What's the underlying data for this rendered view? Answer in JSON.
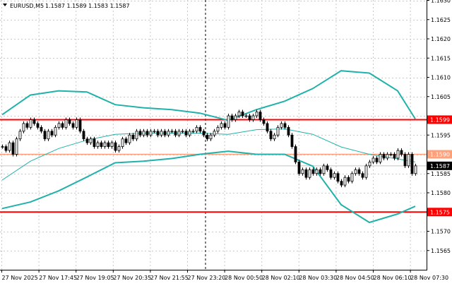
{
  "header": {
    "menu_icon": "triangle-down-icon",
    "symbol": "EURUSD,M5",
    "ohlc": "1.1587 1.1589 1.1583 1.1587"
  },
  "colors": {
    "band": "#20b2aa",
    "support_resistance": "#ff0000",
    "pivot": "#ffa07a",
    "bid_line": "#c0c0c0",
    "grid": "#c8c8c8",
    "background": "#ffffff"
  },
  "chart_data": {
    "type": "candlestick",
    "symbol": "EURUSD",
    "timeframe": "M5",
    "ylim": [
      1.1565,
      1.163
    ],
    "grid": true,
    "y_ticks": [
      "1.1630",
      "1.1625",
      "1.1620",
      "1.1615",
      "1.1610",
      "1.1605",
      "1.1595",
      "1.1585",
      "1.1580",
      "1.1570",
      "1.1565"
    ],
    "x_ticks": [
      "27 Nov 2025",
      "27 Nov 17:45",
      "27 Nov 19:05",
      "27 Nov 20:35",
      "27 Nov 21:55",
      "27 Nov 23:20",
      "28 Nov 00:50",
      "28 Nov 02:10",
      "28 Nov 03:30",
      "28 Nov 04:50",
      "28 Nov 06:10",
      "28 Nov 07:30"
    ],
    "closes": [
      1.1592,
      1.1591,
      1.1593,
      1.159,
      1.1594,
      1.1596,
      1.1598,
      1.1597,
      1.1599,
      1.1598,
      1.1597,
      1.1596,
      1.1594,
      1.1596,
      1.1595,
      1.1597,
      1.1598,
      1.1597,
      1.1599,
      1.1598,
      1.1597,
      1.1599,
      1.1596,
      1.1594,
      1.1593,
      1.1594,
      1.1592,
      1.1593,
      1.1592,
      1.1593,
      1.1592,
      1.1593,
      1.1591,
      1.1592,
      1.1594,
      1.1593,
      1.1595,
      1.1594,
      1.1596,
      1.1595,
      1.1596,
      1.1595,
      1.1596,
      1.1596,
      1.1595,
      1.1596,
      1.1595,
      1.1596,
      1.1596,
      1.1595,
      1.1596,
      1.1596,
      1.1595,
      1.1596,
      1.1596,
      1.1597,
      1.1596,
      1.1595,
      1.1594,
      1.1595,
      1.1596,
      1.1597,
      1.1598,
      1.1597,
      1.16,
      1.1599,
      1.16,
      1.1601,
      1.16,
      1.16,
      1.1599,
      1.16,
      1.1601,
      1.1599,
      1.1598,
      1.1596,
      1.1594,
      1.1595,
      1.1597,
      1.1598,
      1.1597,
      1.1595,
      1.1592,
      1.1588,
      1.1585,
      1.1586,
      1.1584,
      1.1586,
      1.1585,
      1.1586,
      1.1585,
      1.1587,
      1.1586,
      1.1584,
      1.1585,
      1.1583,
      1.1582,
      1.1584,
      1.1583,
      1.1585,
      1.1586,
      1.1585,
      1.1584,
      1.1587,
      1.1588,
      1.1589,
      1.1588,
      1.159,
      1.1589,
      1.159,
      1.159,
      1.1589,
      1.1591,
      1.159,
      1.1587,
      1.159,
      1.1585,
      1.1587
    ],
    "bollinger": {
      "bar_index": [
        0,
        8,
        16,
        24,
        32,
        40,
        48,
        56,
        64,
        72,
        80,
        88,
        96,
        104,
        112,
        117
      ],
      "upper": [
        1.16003,
        1.16054,
        1.16065,
        1.16062,
        1.16029,
        1.16021,
        1.16016,
        1.16007,
        1.15988,
        1.16016,
        1.16038,
        1.16071,
        1.16117,
        1.16111,
        1.16065,
        1.15992
      ],
      "middle": [
        1.15833,
        1.15882,
        1.15915,
        1.15937,
        1.15952,
        1.15955,
        1.15955,
        1.15955,
        1.15952,
        1.15964,
        1.15966,
        1.15952,
        1.15919,
        1.159,
        1.15888,
        1.1588
      ],
      "lower": [
        1.15759,
        1.15776,
        1.15805,
        1.15841,
        1.15878,
        1.15882,
        1.15889,
        1.159,
        1.15908,
        1.159,
        1.159,
        1.15869,
        1.15769,
        1.15723,
        1.15745,
        1.15765
      ]
    },
    "levels": [
      {
        "price": 1.1599,
        "label": "1.1599",
        "color": "#ff0000"
      },
      {
        "price": 1.159,
        "label": "1.1590",
        "color": "#ffa07a"
      },
      {
        "price": 1.1575,
        "label": "1.1575",
        "color": "#ff0000"
      }
    ],
    "bid": {
      "price": 1.1587,
      "label": "1.1587"
    },
    "separator_after_tick": "27 Nov 23:20"
  }
}
